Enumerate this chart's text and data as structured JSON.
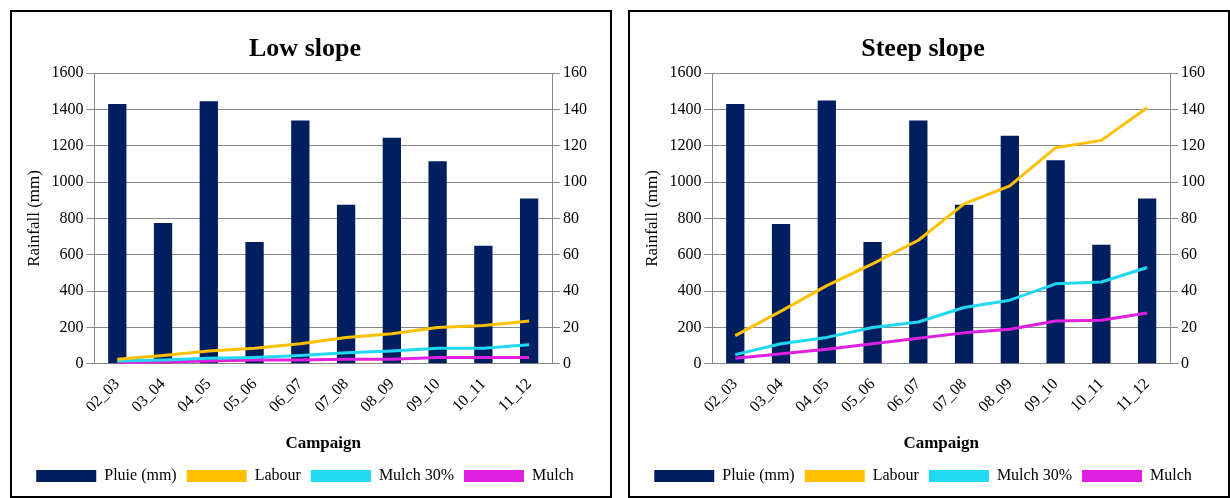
{
  "chart_data": [
    {
      "type": "bar",
      "title": "Low slope",
      "xlabel": "Campaign",
      "ylabel": "Rainfall (mm)",
      "categories": [
        "02_03",
        "03_04",
        "04_05",
        "05_06",
        "06_07",
        "07_08",
        "08_09",
        "09_10",
        "10_11",
        "11_12"
      ],
      "series": [
        {
          "name": "Pluie (mm)",
          "color": "#001f5f",
          "values": [
            1430,
            775,
            1445,
            670,
            1340,
            875,
            1245,
            1115,
            650,
            910
          ]
        },
        {
          "name": "Labour",
          "type": "line",
          "axis": "y2",
          "color": "#ffc000",
          "values": [
            2.5,
            4.5,
            7,
            8.5,
            11,
            14.5,
            16.5,
            20,
            21,
            23.5
          ]
        },
        {
          "name": "Mulch 30%",
          "type": "line",
          "axis": "y2",
          "color": "#20d8f0",
          "values": [
            1.5,
            2,
            3,
            3.5,
            4.5,
            6,
            7,
            8.5,
            8.5,
            10.5
          ]
        },
        {
          "name": "Mulch",
          "type": "line",
          "axis": "y2",
          "color": "#e020e0",
          "values": [
            0,
            1,
            1.5,
            2,
            2,
            2.5,
            2.5,
            3.5,
            3.5,
            3.5
          ]
        }
      ],
      "ylim": [
        0,
        1600
      ],
      "yticks": [
        0,
        200,
        400,
        600,
        800,
        1000,
        1200,
        1400,
        1600
      ],
      "y2lim": [
        0,
        160
      ],
      "y2ticks": [
        0,
        20,
        40,
        60,
        80,
        100,
        120,
        140,
        160
      ],
      "grid": "y",
      "legend": "bottom",
      "marker": "none"
    },
    {
      "type": "bar",
      "title": "Steep slope",
      "xlabel": "Campaign",
      "ylabel": "Rainfall (mm)",
      "categories": [
        "02_03",
        "03_04",
        "04_05",
        "05_06",
        "06_07",
        "07_08",
        "08_09",
        "09_10",
        "10_11",
        "11_12"
      ],
      "series": [
        {
          "name": "Pluie (mm)",
          "color": "#001f5f",
          "values": [
            1430,
            770,
            1450,
            670,
            1340,
            875,
            1255,
            1120,
            655,
            910
          ]
        },
        {
          "name": "Labour",
          "type": "line",
          "axis": "y2",
          "color": "#ffc000",
          "values": [
            15.5,
            29,
            43,
            55,
            68,
            88,
            98,
            119,
            123,
            141
          ]
        },
        {
          "name": "Mulch 30%",
          "type": "line",
          "axis": "y2",
          "color": "#20d8f0",
          "values": [
            5,
            11,
            14.5,
            20,
            23,
            31,
            35,
            44,
            45,
            53
          ]
        },
        {
          "name": "Mulch",
          "type": "line",
          "axis": "y2",
          "color": "#e020e0",
          "values": [
            3,
            5.5,
            8,
            11,
            14,
            17,
            19,
            23.5,
            24,
            28
          ]
        }
      ],
      "ylim": [
        0,
        1600
      ],
      "yticks": [
        0,
        200,
        400,
        600,
        800,
        1000,
        1200,
        1400,
        1600
      ],
      "y2lim": [
        0,
        160
      ],
      "y2ticks": [
        0,
        20,
        40,
        60,
        80,
        100,
        120,
        140,
        160
      ],
      "grid": "y",
      "legend": "bottom",
      "marker": "none"
    }
  ]
}
